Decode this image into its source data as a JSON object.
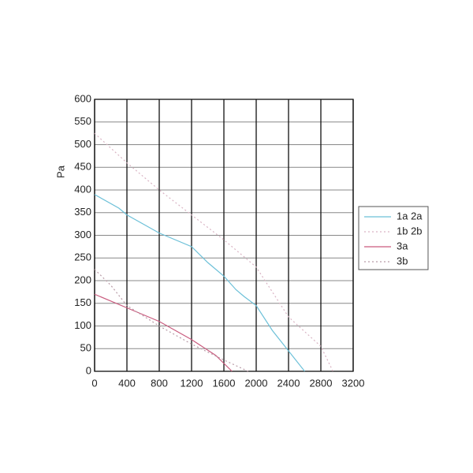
{
  "chart_data": {
    "type": "line",
    "y_label": "Pa",
    "xlim": [
      0,
      3200
    ],
    "xticks": [
      0,
      400,
      800,
      1200,
      1600,
      2000,
      2400,
      2800,
      3200
    ],
    "ylim": [
      0,
      600
    ],
    "yticks": [
      0,
      50,
      100,
      150,
      200,
      250,
      300,
      350,
      400,
      450,
      500,
      550,
      600
    ],
    "grid": true,
    "legend": "right",
    "series": [
      {
        "name": "1a 2a",
        "color": "#6cc0d8",
        "dash": false,
        "x": [
          0,
          300,
          400,
          800,
          1200,
          1400,
          1600,
          1750,
          1850,
          2000,
          2200,
          2400,
          2600
        ],
        "values": [
          390,
          360,
          345,
          305,
          275,
          240,
          210,
          180,
          165,
          145,
          90,
          45,
          0
        ]
      },
      {
        "name": "1b 2b",
        "color": "#d9b3c3",
        "dash": true,
        "x": [
          0,
          400,
          800,
          1200,
          1600,
          2000,
          2400,
          2800,
          2950
        ],
        "values": [
          525,
          460,
          400,
          345,
          290,
          230,
          120,
          55,
          0
        ]
      },
      {
        "name": "3a",
        "color": "#c95b7e",
        "dash": false,
        "x": [
          0,
          400,
          800,
          1200,
          1500,
          1700
        ],
        "values": [
          170,
          140,
          110,
          70,
          35,
          0
        ]
      },
      {
        "name": "3b",
        "color": "#b89aa6",
        "dash": true,
        "x": [
          0,
          200,
          400,
          800,
          1200,
          1600,
          1900
        ],
        "values": [
          225,
          190,
          145,
          100,
          60,
          25,
          0
        ]
      }
    ]
  }
}
